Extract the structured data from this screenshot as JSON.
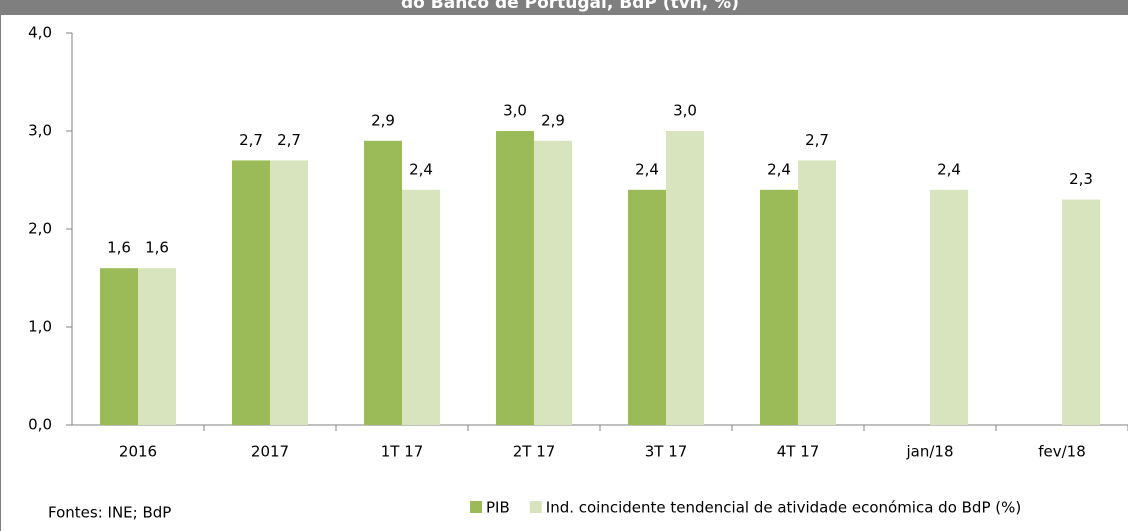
{
  "chart_data": {
    "type": "bar",
    "title": "do Banco de Portugal, BdP (tvh, %)",
    "categories": [
      "2016",
      "2017",
      "1T 17",
      "2T 17",
      "3T 17",
      "4T 17",
      "jan/18",
      "fev/18"
    ],
    "series": [
      {
        "name": "PIB",
        "color": "#9bbb59",
        "values": [
          1.6,
          2.7,
          2.9,
          3.0,
          2.4,
          2.4,
          null,
          null
        ],
        "value_labels": [
          "1,6",
          "2,7",
          "2,9",
          "3,0",
          "2,4",
          "2,4",
          null,
          null
        ]
      },
      {
        "name": "Ind. coincidente tendencial de atividade económica do BdP (%)",
        "color": "#d7e4bd",
        "values": [
          1.6,
          2.7,
          2.4,
          2.9,
          3.0,
          2.7,
          2.4,
          2.3
        ],
        "value_labels": [
          "1,6",
          "2,7",
          "2,4",
          "2,9",
          "3,0",
          "2,7",
          "2,4",
          "2,3"
        ]
      }
    ],
    "ylim": [
      0,
      4
    ],
    "yticks": [
      {
        "value": 0,
        "label": "0,0"
      },
      {
        "value": 1,
        "label": "1,0"
      },
      {
        "value": 2,
        "label": "2,0"
      },
      {
        "value": 3,
        "label": "3,0"
      },
      {
        "value": 4,
        "label": "4,0"
      }
    ],
    "grid": false,
    "legend": "bottom",
    "source": "Fontes:  INE; BdP"
  }
}
